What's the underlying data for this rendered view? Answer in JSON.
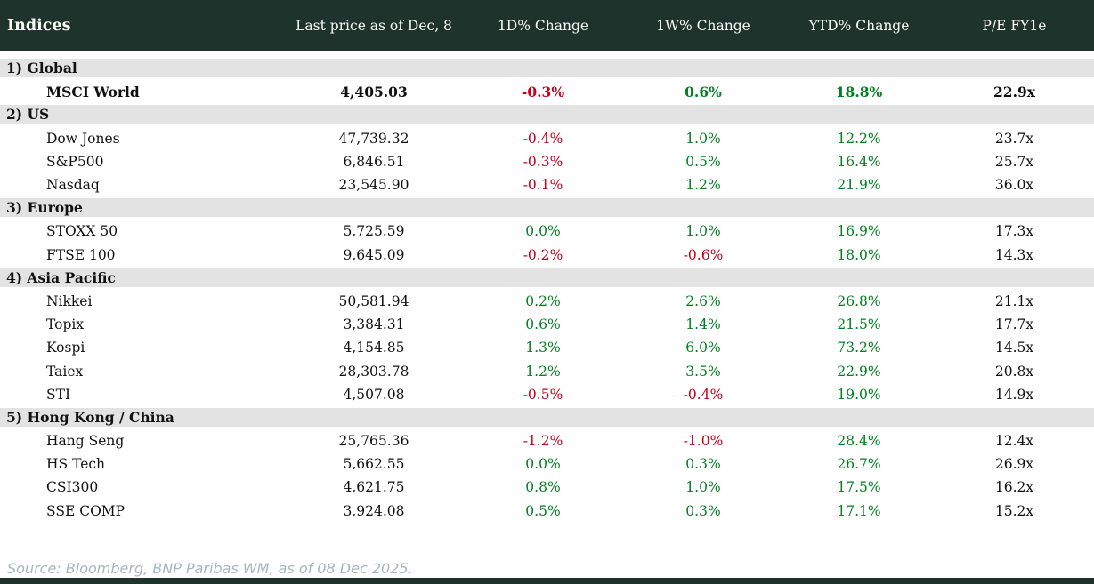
{
  "header": {
    "columns": [
      "Indices",
      "Last price as of Dec, 8",
      "1D% Change",
      "1W% Change",
      "YTD% Change",
      "P/E FY1e"
    ]
  },
  "chart_data": {
    "type": "table",
    "title": "Indices",
    "columns": [
      "Indices",
      "Last price as of Dec, 8",
      "1D% Change",
      "1W% Change",
      "YTD% Change",
      "P/E FY1e"
    ],
    "sections": [
      {
        "label": "1) Global",
        "rows": [
          [
            "MSCI World",
            "4,405.03",
            "-0.3%",
            "0.6%",
            "18.8%",
            "22.9x"
          ]
        ]
      },
      {
        "label": "2) US",
        "rows": [
          [
            "Dow Jones",
            "47,739.32",
            "-0.4%",
            "1.0%",
            "12.2%",
            "23.7x"
          ],
          [
            "S&P500",
            "6,846.51",
            "-0.3%",
            "0.5%",
            "16.4%",
            "25.7x"
          ],
          [
            "Nasdaq",
            "23,545.90",
            "-0.1%",
            "1.2%",
            "21.9%",
            "36.0x"
          ]
        ]
      },
      {
        "label": "3) Europe",
        "rows": [
          [
            "STOXX 50",
            "5,725.59",
            "0.0%",
            "1.0%",
            "16.9%",
            "17.3x"
          ],
          [
            "FTSE 100",
            "9,645.09",
            "-0.2%",
            "-0.6%",
            "18.0%",
            "14.3x"
          ]
        ]
      },
      {
        "label": "4) Asia Pacific",
        "rows": [
          [
            "Nikkei",
            "50,581.94",
            "0.2%",
            "2.6%",
            "26.8%",
            "21.1x"
          ],
          [
            "Topix",
            "3,384.31",
            "0.6%",
            "1.4%",
            "21.5%",
            "17.7x"
          ],
          [
            "Kospi",
            "4,154.85",
            "1.3%",
            "6.0%",
            "73.2%",
            "14.5x"
          ],
          [
            "Taiex",
            "28,303.78",
            "1.2%",
            "3.5%",
            "22.9%",
            "20.8x"
          ],
          [
            "STI",
            "4,507.08",
            "-0.5%",
            "-0.4%",
            "19.0%",
            "14.9x"
          ]
        ]
      },
      {
        "label": "5) Hong Kong / China",
        "rows": [
          [
            "Hang Seng",
            "25,765.36",
            "-1.2%",
            "-1.0%",
            "28.4%",
            "12.4x"
          ],
          [
            "HS Tech",
            "5,662.55",
            "0.0%",
            "0.3%",
            "26.7%",
            "26.9x"
          ],
          [
            "CSI300",
            "4,621.75",
            "0.8%",
            "1.0%",
            "17.5%",
            "16.2x"
          ],
          [
            "SSE COMP",
            "3,924.08",
            "0.5%",
            "0.3%",
            "17.1%",
            "15.2x"
          ]
        ]
      }
    ],
    "bold_rows": [
      "MSCI World"
    ]
  },
  "footer": {
    "source": "Source: Bloomberg, BNP Paribas WM, as of 08 Dec 2025."
  },
  "colors": {
    "header_bg": "#1d332c",
    "section_bg": "#e3e3e3",
    "positive": "#00801f",
    "negative": "#c4001c",
    "text": "#111111",
    "header_text": "#fbfbf4",
    "source_text": "#a9b5bd"
  }
}
